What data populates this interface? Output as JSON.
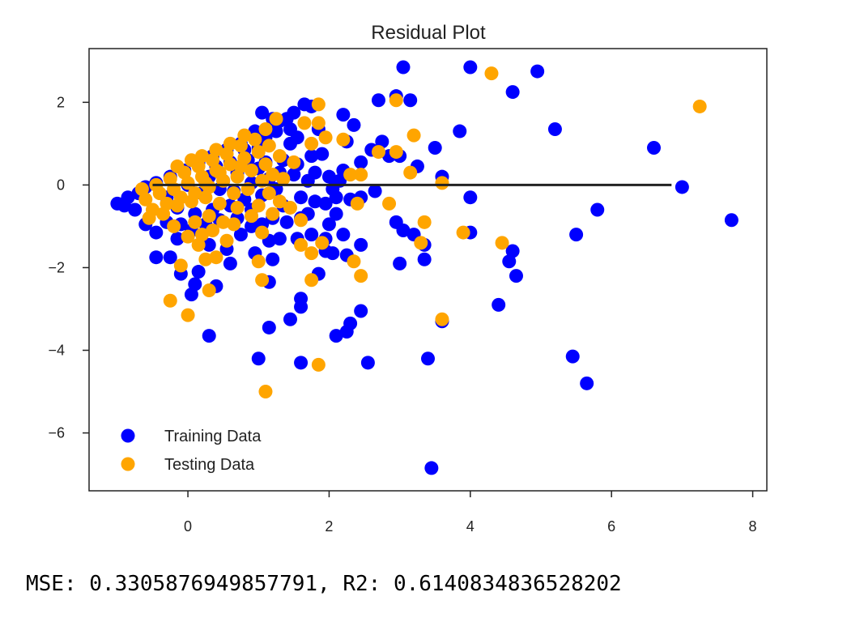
{
  "chart_data": {
    "type": "scatter",
    "title": "Residual Plot",
    "xlabel": "",
    "ylabel": "",
    "xlim": [
      -1.4,
      8.2
    ],
    "ylim": [
      -7.4,
      3.3
    ],
    "xticks": [
      0,
      2,
      4,
      6,
      8
    ],
    "yticks": [
      -6,
      -4,
      -2,
      0,
      2
    ],
    "grid": false,
    "legend_position": "bottom-left",
    "hline": {
      "y": 0,
      "xmin": -0.5,
      "xmax": 6.85,
      "color": "#222222"
    },
    "series": [
      {
        "name": "Training Data",
        "color": "#0000ff",
        "points": [
          [
            3.05,
            2.85
          ],
          [
            4.0,
            2.85
          ],
          [
            4.95,
            2.75
          ],
          [
            4.6,
            2.25
          ],
          [
            2.95,
            2.15
          ],
          [
            3.15,
            2.05
          ],
          [
            2.7,
            2.05
          ],
          [
            5.2,
            1.35
          ],
          [
            3.85,
            1.3
          ],
          [
            6.6,
            0.9
          ],
          [
            3.5,
            0.9
          ],
          [
            7.0,
            -0.05
          ],
          [
            7.7,
            -0.85
          ],
          [
            5.8,
            -0.6
          ],
          [
            5.5,
            -1.2
          ],
          [
            4.0,
            -1.15
          ],
          [
            4.6,
            -1.6
          ],
          [
            4.55,
            -1.85
          ],
          [
            4.65,
            -2.2
          ],
          [
            4.4,
            -2.9
          ],
          [
            5.45,
            -4.15
          ],
          [
            5.65,
            -4.8
          ],
          [
            3.6,
            -3.3
          ],
          [
            3.4,
            -4.2
          ],
          [
            3.45,
            -6.85
          ],
          [
            3.35,
            -1.8
          ],
          [
            3.35,
            -1.45
          ],
          [
            3.0,
            -1.9
          ],
          [
            3.05,
            -1.1
          ],
          [
            2.95,
            -0.9
          ],
          [
            3.2,
            -1.2
          ],
          [
            4.0,
            -0.3
          ],
          [
            3.6,
            0.2
          ],
          [
            3.25,
            0.45
          ],
          [
            3.0,
            0.7
          ],
          [
            2.85,
            0.7
          ],
          [
            2.65,
            -0.15
          ],
          [
            2.45,
            -1.45
          ],
          [
            2.45,
            -3.05
          ],
          [
            2.3,
            -3.35
          ],
          [
            2.25,
            -3.55
          ],
          [
            2.1,
            -3.65
          ],
          [
            2.55,
            -4.3
          ],
          [
            1.95,
            -1.6
          ],
          [
            2.05,
            -1.65
          ],
          [
            2.25,
            -1.7
          ],
          [
            1.6,
            -2.75
          ],
          [
            1.6,
            -2.95
          ],
          [
            1.45,
            -3.25
          ],
          [
            1.6,
            -4.3
          ],
          [
            1.15,
            -3.45
          ],
          [
            1.0,
            -4.2
          ],
          [
            1.15,
            -2.35
          ],
          [
            0.3,
            -3.65
          ],
          [
            0.1,
            -2.4
          ],
          [
            0.05,
            -2.65
          ],
          [
            -0.1,
            -2.15
          ],
          [
            0.15,
            -2.1
          ],
          [
            0.4,
            -2.45
          ],
          [
            -0.25,
            -1.75
          ],
          [
            -0.45,
            -1.75
          ],
          [
            -0.15,
            -1.3
          ],
          [
            0.3,
            -1.45
          ],
          [
            0.55,
            -1.55
          ],
          [
            0.6,
            -1.9
          ],
          [
            0.75,
            -1.2
          ],
          [
            0.95,
            -1.65
          ],
          [
            1.15,
            -1.35
          ],
          [
            1.2,
            -1.8
          ],
          [
            1.3,
            -1.3
          ],
          [
            1.55,
            -1.3
          ],
          [
            1.75,
            -1.2
          ],
          [
            1.85,
            -2.15
          ],
          [
            1.95,
            -1.3
          ],
          [
            2.2,
            -1.2
          ],
          [
            1.7,
            -0.7
          ],
          [
            1.95,
            -0.45
          ],
          [
            2.1,
            -0.3
          ],
          [
            2.15,
            0.1
          ],
          [
            2.3,
            -0.35
          ],
          [
            2.45,
            -0.3
          ],
          [
            2.2,
            0.35
          ],
          [
            2.45,
            0.55
          ],
          [
            2.6,
            0.85
          ],
          [
            2.75,
            1.05
          ],
          [
            2.25,
            1.05
          ],
          [
            2.35,
            1.45
          ],
          [
            2.2,
            1.7
          ],
          [
            1.85,
            1.35
          ],
          [
            1.75,
            1.9
          ],
          [
            1.65,
            1.95
          ],
          [
            1.5,
            1.75
          ],
          [
            1.4,
            1.6
          ],
          [
            1.3,
            1.55
          ],
          [
            1.45,
            1.0
          ],
          [
            1.55,
            0.5
          ],
          [
            1.7,
            0.1
          ],
          [
            1.8,
            0.3
          ],
          [
            1.9,
            0.75
          ],
          [
            2.0,
            0.2
          ],
          [
            2.05,
            -0.1
          ],
          [
            1.6,
            -0.3
          ],
          [
            1.35,
            -0.5
          ],
          [
            1.2,
            -0.8
          ],
          [
            1.05,
            -0.95
          ],
          [
            0.9,
            -0.6
          ],
          [
            0.7,
            -0.8
          ],
          [
            0.45,
            -0.85
          ],
          [
            0.25,
            -0.95
          ],
          [
            0.05,
            -1.1
          ],
          [
            -0.1,
            -0.95
          ],
          [
            -0.3,
            -0.9
          ],
          [
            -0.45,
            -1.15
          ],
          [
            -0.6,
            -0.95
          ],
          [
            -0.75,
            -0.6
          ],
          [
            -0.9,
            -0.5
          ],
          [
            -1.0,
            -0.45
          ],
          [
            -0.85,
            -0.3
          ],
          [
            -0.7,
            -0.2
          ],
          [
            -0.6,
            -0.05
          ],
          [
            -0.45,
            0.05
          ],
          [
            -0.25,
            0.2
          ],
          [
            -0.05,
            0.35
          ],
          [
            0.15,
            0.55
          ],
          [
            0.35,
            0.7
          ],
          [
            0.55,
            0.85
          ],
          [
            0.75,
            1.0
          ],
          [
            0.95,
            1.3
          ],
          [
            1.1,
            1.15
          ],
          [
            1.25,
            1.3
          ],
          [
            0.85,
            0.6
          ],
          [
            1.0,
            0.4
          ],
          [
            1.15,
            0.15
          ],
          [
            1.25,
            -0.1
          ],
          [
            1.05,
            -0.25
          ],
          [
            0.8,
            -0.35
          ],
          [
            0.6,
            -0.5
          ],
          [
            0.35,
            -0.6
          ],
          [
            0.1,
            -0.7
          ],
          [
            -0.15,
            -0.55
          ],
          [
            0.3,
            0.2
          ],
          [
            0.5,
            0.1
          ],
          [
            0.7,
            0.3
          ],
          [
            0.2,
            -0.2
          ],
          [
            0.45,
            -0.1
          ],
          [
            0.65,
            -0.15
          ],
          [
            0.9,
            0.05
          ],
          [
            1.35,
            0.6
          ],
          [
            1.5,
            0.25
          ],
          [
            1.75,
            0.7
          ],
          [
            1.55,
            1.15
          ],
          [
            1.6,
            -0.8
          ],
          [
            1.4,
            -0.9
          ],
          [
            1.8,
            -0.4
          ],
          [
            2.0,
            -0.95
          ],
          [
            2.1,
            -0.7
          ],
          [
            -0.3,
            -0.3
          ],
          [
            0.0,
            0.0
          ],
          [
            0.4,
            0.45
          ],
          [
            0.6,
            0.55
          ],
          [
            0.8,
            0.85
          ],
          [
            1.0,
            0.9
          ],
          [
            1.1,
            0.55
          ],
          [
            1.3,
            0.3
          ],
          [
            1.45,
            1.35
          ],
          [
            1.2,
            1.6
          ],
          [
            1.05,
            1.75
          ],
          [
            0.9,
            -1.0
          ]
        ]
      },
      {
        "name": "Testing Data",
        "color": "#ffa500",
        "points": [
          [
            4.3,
            2.7
          ],
          [
            7.25,
            1.9
          ],
          [
            2.95,
            2.05
          ],
          [
            1.85,
            1.95
          ],
          [
            3.2,
            1.2
          ],
          [
            3.6,
            0.05
          ],
          [
            3.15,
            0.3
          ],
          [
            2.95,
            0.8
          ],
          [
            2.7,
            0.8
          ],
          [
            2.85,
            -0.45
          ],
          [
            2.4,
            -0.45
          ],
          [
            2.3,
            0.25
          ],
          [
            2.45,
            0.25
          ],
          [
            3.35,
            -0.9
          ],
          [
            3.3,
            -1.4
          ],
          [
            3.9,
            -1.15
          ],
          [
            4.45,
            -1.4
          ],
          [
            3.6,
            -3.25
          ],
          [
            2.35,
            -1.85
          ],
          [
            2.45,
            -2.2
          ],
          [
            1.85,
            -4.35
          ],
          [
            1.1,
            -5.0
          ],
          [
            1.0,
            -1.85
          ],
          [
            1.05,
            -2.3
          ],
          [
            1.75,
            -2.3
          ],
          [
            1.9,
            -1.4
          ],
          [
            1.75,
            -1.65
          ],
          [
            1.6,
            -1.45
          ],
          [
            1.6,
            -0.85
          ],
          [
            1.45,
            -0.55
          ],
          [
            0.3,
            -2.55
          ],
          [
            -0.25,
            -2.8
          ],
          [
            0.0,
            -3.15
          ],
          [
            -0.1,
            -1.95
          ],
          [
            0.25,
            -1.8
          ],
          [
            0.4,
            -1.75
          ],
          [
            0.2,
            -1.2
          ],
          [
            0.55,
            -1.35
          ],
          [
            1.05,
            -1.15
          ],
          [
            1.2,
            -0.7
          ],
          [
            1.3,
            -0.4
          ],
          [
            1.65,
            1.5
          ],
          [
            1.85,
            1.5
          ],
          [
            1.95,
            1.15
          ],
          [
            1.75,
            1.0
          ],
          [
            2.2,
            1.1
          ],
          [
            1.25,
            1.6
          ],
          [
            1.1,
            1.35
          ],
          [
            1.5,
            0.55
          ],
          [
            1.35,
            0.15
          ],
          [
            -0.6,
            -0.35
          ],
          [
            -0.4,
            -0.2
          ],
          [
            -0.2,
            -0.1
          ],
          [
            0.0,
            0.05
          ],
          [
            0.2,
            0.2
          ],
          [
            0.4,
            0.35
          ],
          [
            0.6,
            0.5
          ],
          [
            0.8,
            0.65
          ],
          [
            1.0,
            0.8
          ],
          [
            1.15,
            0.95
          ],
          [
            -0.5,
            -0.6
          ],
          [
            -0.3,
            -0.45
          ],
          [
            -0.1,
            -0.3
          ],
          [
            0.1,
            -0.2
          ],
          [
            0.3,
            -0.05
          ],
          [
            0.5,
            0.1
          ],
          [
            0.7,
            0.2
          ],
          [
            0.9,
            0.35
          ],
          [
            1.1,
            0.5
          ],
          [
            -0.55,
            -0.8
          ],
          [
            -0.35,
            -0.7
          ],
          [
            -0.15,
            -0.5
          ],
          [
            0.05,
            -0.4
          ],
          [
            0.25,
            -0.3
          ],
          [
            0.45,
            -0.45
          ],
          [
            0.65,
            -0.2
          ],
          [
            0.85,
            -0.1
          ],
          [
            1.05,
            0.1
          ],
          [
            -0.45,
            0.0
          ],
          [
            -0.25,
            0.15
          ],
          [
            -0.05,
            0.3
          ],
          [
            0.15,
            0.45
          ],
          [
            0.35,
            0.6
          ],
          [
            0.55,
            0.75
          ],
          [
            0.75,
            0.95
          ],
          [
            0.95,
            1.1
          ],
          [
            0.1,
            -0.9
          ],
          [
            0.3,
            -0.75
          ],
          [
            0.5,
            -0.9
          ],
          [
            0.7,
            -0.55
          ],
          [
            0.9,
            -0.75
          ],
          [
            0.2,
            0.7
          ],
          [
            0.4,
            0.85
          ],
          [
            0.6,
            1.0
          ],
          [
            0.8,
            1.2
          ],
          [
            1.2,
            0.25
          ],
          [
            1.3,
            0.7
          ],
          [
            -0.2,
            -1.0
          ],
          [
            0.0,
            -1.25
          ],
          [
            0.15,
            -1.45
          ],
          [
            0.35,
            -1.1
          ],
          [
            0.65,
            -0.95
          ],
          [
            -0.65,
            -0.1
          ],
          [
            1.0,
            -0.5
          ],
          [
            1.15,
            -0.2
          ],
          [
            0.05,
            0.6
          ],
          [
            -0.15,
            0.45
          ],
          [
            0.45,
            0.3
          ],
          [
            0.25,
            0.05
          ],
          [
            0.75,
            0.45
          ]
        ]
      }
    ]
  },
  "output_text": "MSE: 0.3305876949857791, R2: 0.6140834836528202"
}
